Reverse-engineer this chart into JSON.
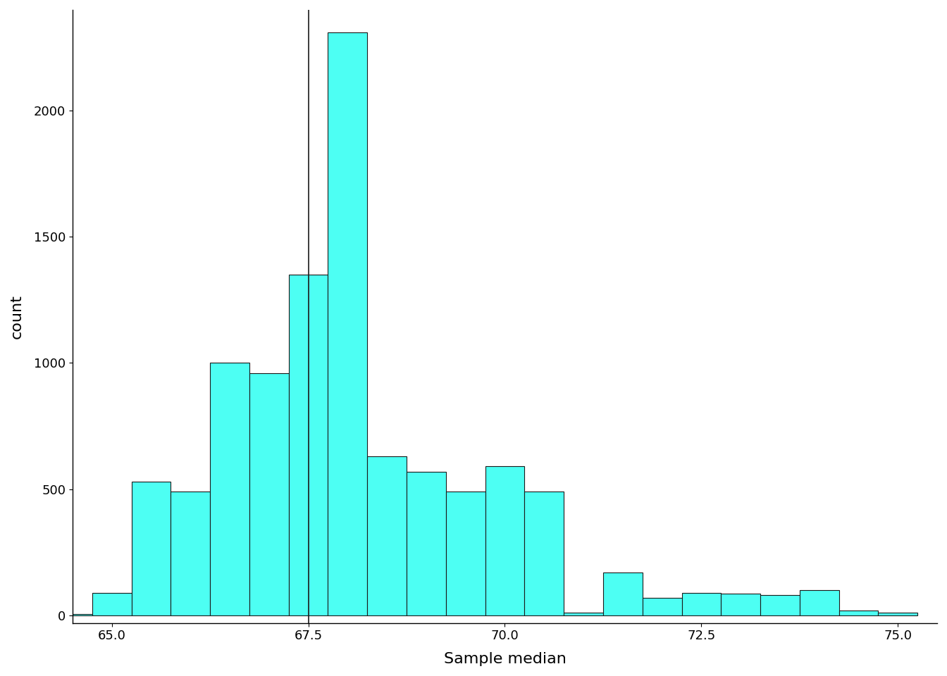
{
  "title": "",
  "xlabel": "Sample median",
  "ylabel": "count",
  "bar_color": "#4DFFF3",
  "bar_edge_color": "#1a1a1a",
  "vline_x": 67.5,
  "vline_color": "#1a1a1a",
  "vline_lw": 1.2,
  "background_color": "#ffffff",
  "xlim": [
    64.5,
    75.5
  ],
  "ylim": [
    -30,
    2400
  ],
  "yticks": [
    0,
    500,
    1000,
    1500,
    2000
  ],
  "xticks": [
    65.0,
    67.5,
    70.0,
    72.5,
    75.0
  ],
  "bin_edges": [
    64.75,
    65.25,
    65.75,
    66.25,
    66.75,
    67.25,
    67.75,
    68.25,
    68.75,
    69.25,
    69.75,
    70.25,
    70.75,
    71.25,
    71.75,
    72.25,
    72.75,
    73.25,
    73.75,
    74.25,
    74.75,
    75.25
  ],
  "counts": [
    90,
    530,
    490,
    1000,
    960,
    1350,
    2310,
    630,
    570,
    490,
    590,
    490,
    10,
    170,
    70,
    90,
    85,
    80,
    100,
    20,
    10
  ]
}
